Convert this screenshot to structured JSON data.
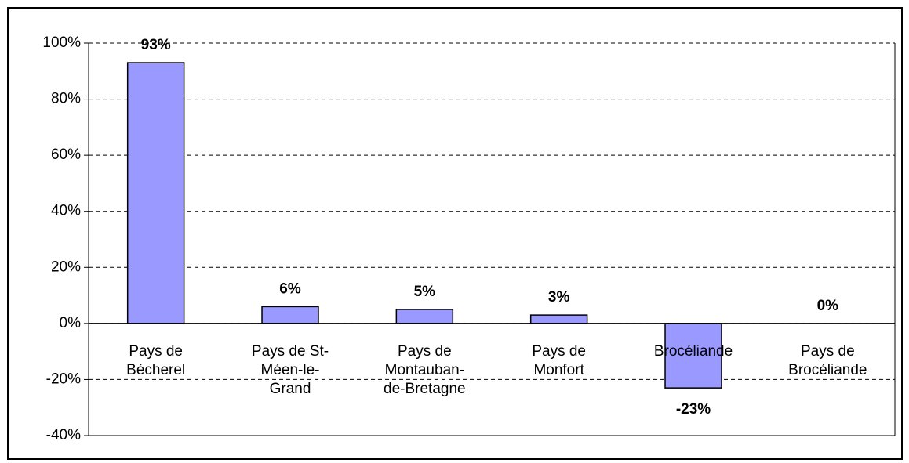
{
  "chart_data": {
    "type": "bar",
    "categories": [
      "Pays de Bécherel",
      "Pays de St-Méen-le-Grand",
      "Pays de Montauban-de-Bretagne",
      "Pays de Monfort",
      "Brocéliande",
      "Pays de Brocéliande"
    ],
    "values": [
      93,
      6,
      5,
      3,
      -23,
      0
    ],
    "value_labels": [
      "93%",
      "6%",
      "5%",
      "3%",
      "-23%",
      "0%"
    ],
    "color": "#9999ff",
    "ylim": [
      -40,
      100
    ],
    "yticks": [
      {
        "value": -40,
        "label": "-40%"
      },
      {
        "value": -20,
        "label": "-20%"
      },
      {
        "value": 0,
        "label": "0%"
      },
      {
        "value": 20,
        "label": "20%"
      },
      {
        "value": 40,
        "label": "40%"
      },
      {
        "value": 60,
        "label": "60%"
      },
      {
        "value": 80,
        "label": "80%"
      },
      {
        "value": 100,
        "label": "100%"
      }
    ],
    "grid": true
  }
}
